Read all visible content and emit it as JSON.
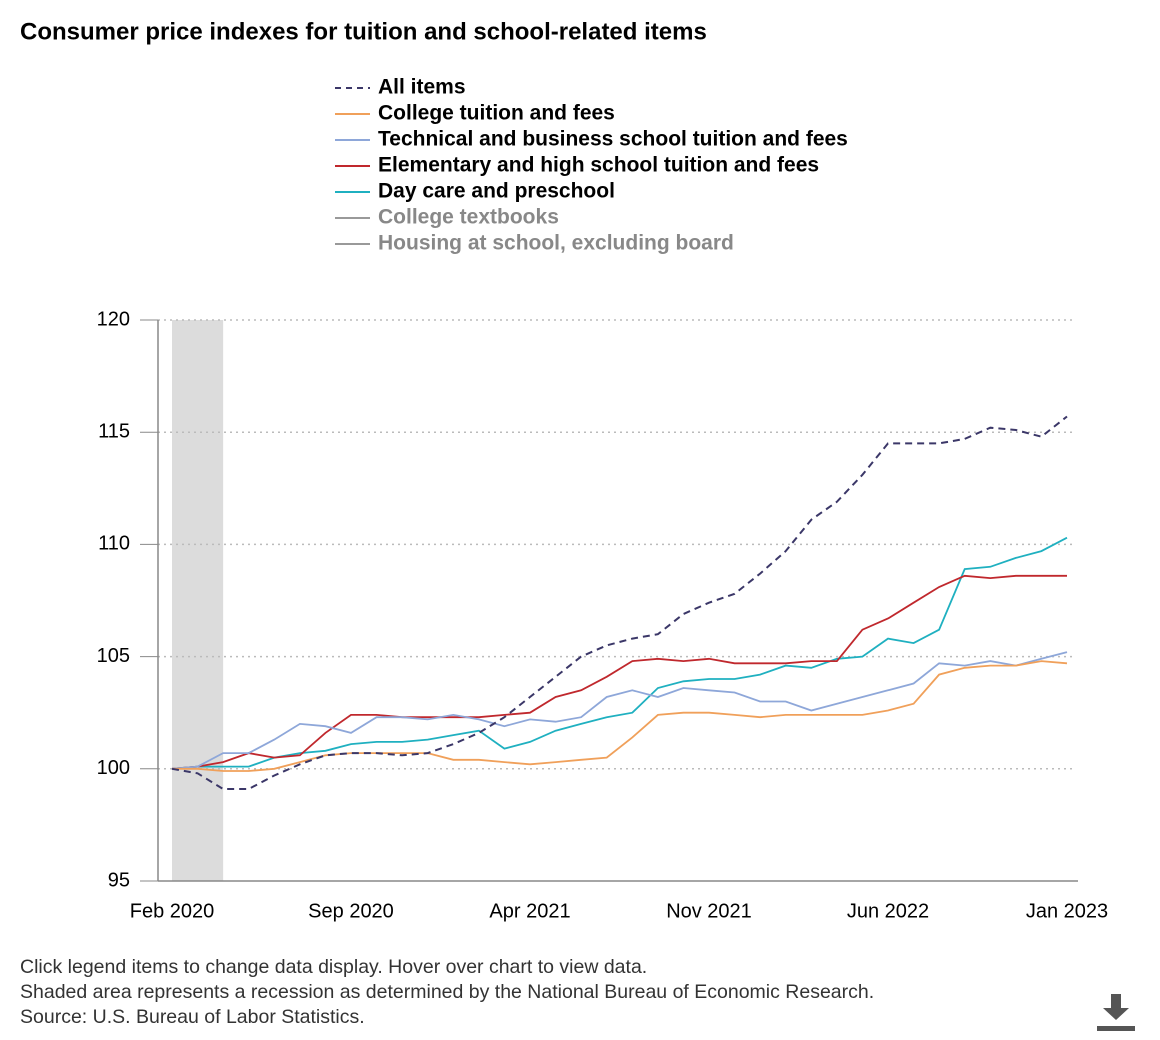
{
  "chart_data": {
    "type": "line",
    "title": "Consumer price indexes for tuition and school-related items",
    "categories": [
      "Feb 2020",
      null,
      null,
      null,
      null,
      null,
      null,
      "Sep 2020",
      null,
      null,
      null,
      null,
      null,
      null,
      "Apr 2021",
      null,
      null,
      null,
      null,
      null,
      null,
      "Nov 2021",
      null,
      null,
      null,
      null,
      null,
      null,
      "Jun 2022",
      null,
      null,
      null,
      null,
      null,
      null,
      "Jan 2023"
    ],
    "series": [
      {
        "name": "All items",
        "color": "#3b3768",
        "dashed": true,
        "values": [
          100.0,
          99.8,
          99.1,
          99.1,
          99.7,
          100.2,
          100.6,
          100.7,
          100.7,
          100.6,
          100.7,
          101.1,
          101.6,
          102.3,
          103.2,
          104.1,
          105.0,
          105.5,
          105.8,
          106.0,
          106.9,
          107.4,
          107.8,
          108.7,
          109.7,
          111.1,
          111.9,
          113.1,
          114.5,
          114.5,
          114.5,
          114.7,
          115.2,
          115.1,
          114.8,
          115.7
        ]
      },
      {
        "name": "College tuition and fees",
        "color": "#f0a05a",
        "values": [
          100.0,
          100.0,
          99.9,
          99.9,
          100.0,
          100.3,
          100.6,
          100.7,
          100.7,
          100.7,
          100.7,
          100.4,
          100.4,
          100.3,
          100.2,
          100.3,
          100.4,
          100.5,
          101.4,
          102.4,
          102.5,
          102.5,
          102.4,
          102.3,
          102.4,
          102.4,
          102.4,
          102.4,
          102.6,
          102.9,
          104.2,
          104.5,
          104.6,
          104.6,
          104.8,
          104.7
        ]
      },
      {
        "name": "Technical and business school tuition and fees",
        "color": "#8ea7d9",
        "values": [
          100.0,
          100.1,
          100.7,
          100.7,
          101.3,
          102.0,
          101.9,
          101.6,
          102.3,
          102.3,
          102.2,
          102.4,
          102.2,
          101.9,
          102.2,
          102.1,
          102.3,
          103.2,
          103.5,
          103.2,
          103.6,
          103.5,
          103.4,
          103.0,
          103.0,
          102.6,
          102.9,
          103.2,
          103.5,
          103.8,
          104.7,
          104.6,
          104.8,
          104.6,
          104.9,
          105.2
        ]
      },
      {
        "name": "Elementary and high school tuition and fees",
        "color": "#c0282d",
        "values": [
          100.0,
          100.1,
          100.3,
          100.7,
          100.5,
          100.6,
          101.6,
          102.4,
          102.4,
          102.3,
          102.3,
          102.3,
          102.3,
          102.4,
          102.5,
          103.2,
          103.5,
          104.1,
          104.8,
          104.9,
          104.8,
          104.9,
          104.7,
          104.7,
          104.7,
          104.8,
          104.8,
          106.2,
          106.7,
          107.4,
          108.1,
          108.6,
          108.5,
          108.6,
          108.6,
          108.6
        ]
      },
      {
        "name": "Day care and preschool",
        "color": "#1fb0c0",
        "values": [
          100.0,
          100.1,
          100.1,
          100.1,
          100.5,
          100.7,
          100.8,
          101.1,
          101.2,
          101.2,
          101.3,
          101.5,
          101.7,
          100.9,
          101.2,
          101.7,
          102.0,
          102.3,
          102.5,
          103.6,
          103.9,
          104.0,
          104.0,
          104.2,
          104.6,
          104.5,
          104.9,
          105.0,
          105.8,
          105.6,
          106.2,
          108.9,
          109.0,
          109.4,
          109.7,
          110.3
        ]
      }
    ],
    "legend_hidden": [
      "College textbooks",
      "Housing at school, excluding board"
    ],
    "recession_index": [
      0,
      2
    ],
    "ylim": [
      95,
      120
    ],
    "yticks": [
      95,
      100,
      105,
      110,
      115,
      120
    ],
    "grid": true,
    "notes": [
      "Click legend items to change data display. Hover over chart to view data.",
      "Shaded area represents a recession as determined by the National Bureau of Economic Research.",
      "Source: U.S. Bureau of Labor Statistics."
    ]
  }
}
